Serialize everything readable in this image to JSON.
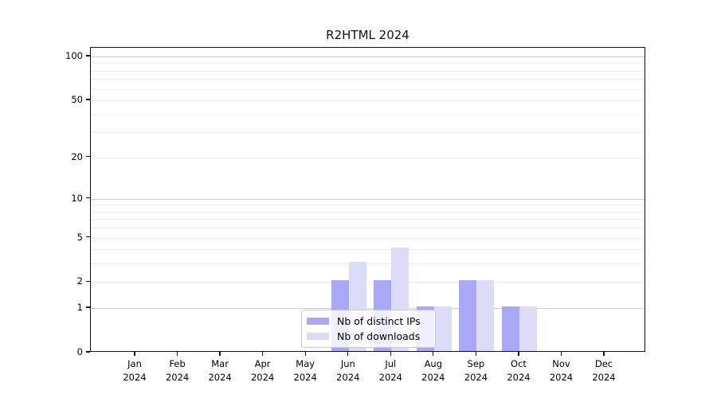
{
  "chart_data": {
    "type": "bar",
    "title": "R2HTML 2024",
    "categories": [
      "Jan",
      "Feb",
      "Mar",
      "Apr",
      "May",
      "Jun",
      "Jul",
      "Aug",
      "Sep",
      "Oct",
      "Nov",
      "Dec"
    ],
    "year_label": "2024",
    "series": [
      {
        "name": "Nb of distinct IPs",
        "color": "#a8a8f7",
        "values": [
          0,
          0,
          0,
          0,
          0,
          2,
          2,
          1,
          2,
          1,
          0,
          0
        ]
      },
      {
        "name": "Nb of downloads",
        "color": "#dcdcf9",
        "values": [
          0,
          0,
          0,
          0,
          0,
          3,
          4,
          1,
          2,
          1,
          0,
          0
        ]
      }
    ],
    "xlabel": "",
    "ylabel": "",
    "yscale": "log1p",
    "ylim": [
      0,
      100
    ],
    "ytick_values": [
      0,
      1,
      2,
      5,
      10,
      20,
      50,
      100
    ],
    "ytick_labels": [
      "0",
      "1",
      "2",
      "5",
      "10",
      "20",
      "50",
      "100"
    ],
    "minor_gridline_values": [
      2,
      3,
      4,
      5,
      6,
      7,
      8,
      9,
      20,
      30,
      40,
      50,
      60,
      70,
      80,
      90
    ],
    "major_gridline_values": [
      1,
      10,
      100
    ],
    "grid": true,
    "legend_position": "bottom-center"
  },
  "colors": {
    "axis": "#111111",
    "grid_minor": "#ededed",
    "grid_major": "#cccccc",
    "legend_border": "#c8c8c8",
    "text": "#000000"
  }
}
